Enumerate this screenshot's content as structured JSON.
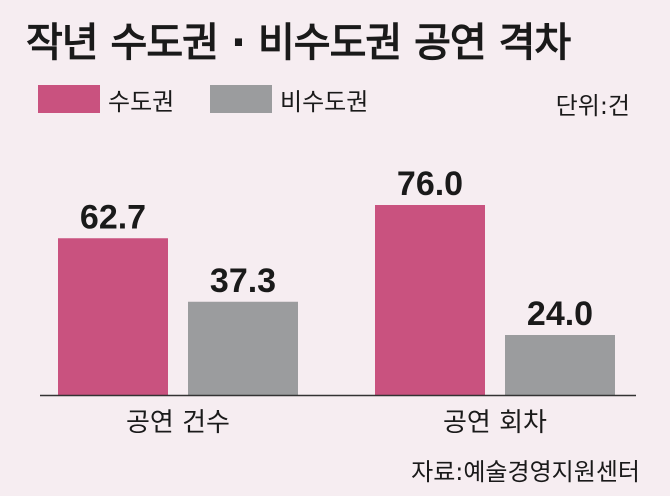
{
  "title": "작년 수도권 · 비수도권 공연 격차",
  "unit": "단위:건",
  "source": "자료:예술경영지원센터",
  "colors": {
    "metro": "#c9527f",
    "nonmetro": "#9b9c9e",
    "axis": "#333333"
  },
  "chart_data": {
    "type": "bar",
    "categories": [
      "공연 건수",
      "공연 회차"
    ],
    "series": [
      {
        "name": "수도권",
        "values": [
          62.7,
          76.0
        ]
      },
      {
        "name": "비수도권",
        "values": [
          37.3,
          24.0
        ]
      }
    ],
    "value_labels": [
      [
        "62.7",
        "76.0"
      ],
      [
        "37.3",
        "24.0"
      ]
    ],
    "ylim": [
      0,
      100
    ],
    "grid": false,
    "legend": "top-left"
  }
}
